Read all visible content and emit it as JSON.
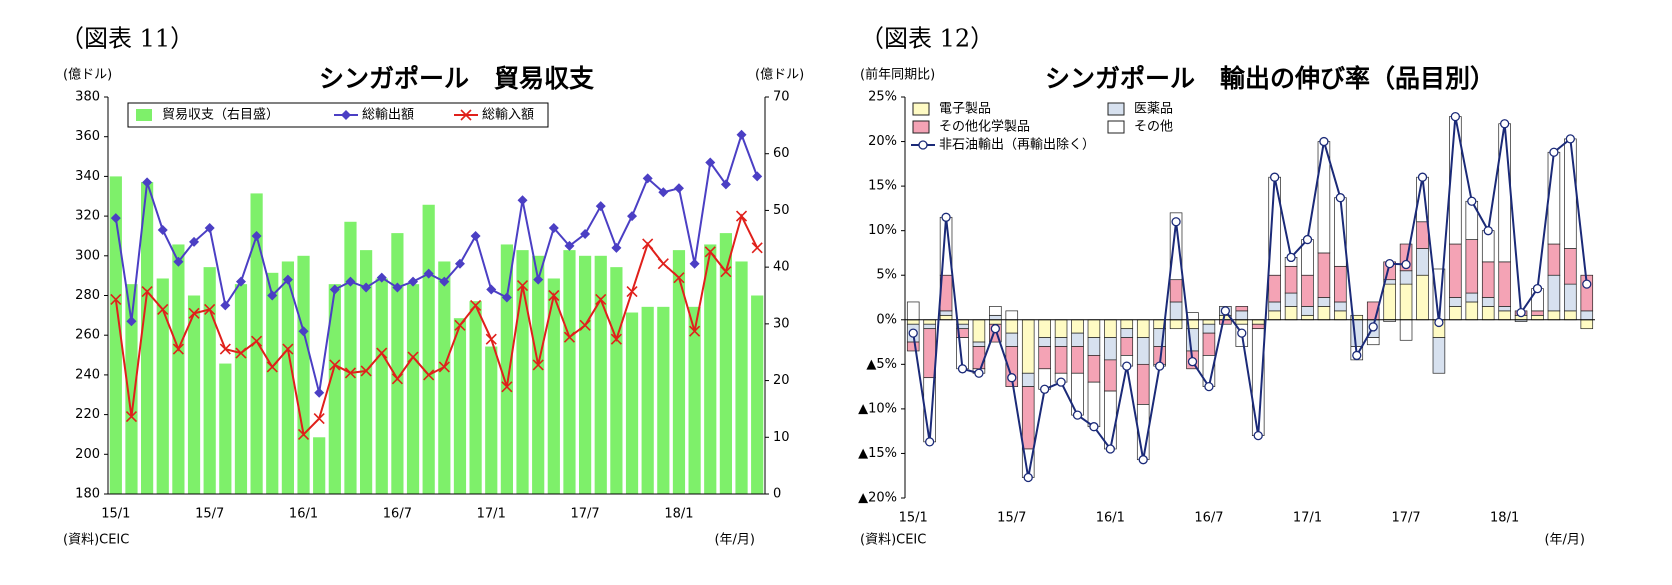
{
  "chart_data": [
    {
      "type": "combo",
      "figure_label": "（図表 11）",
      "title": "シンガポール　貿易収支",
      "y_label": "(億ドル)",
      "y2_label": "(億ドル)",
      "source": "(資料)CEIC",
      "x_label": "(年/月)",
      "categories": [
        "15/1",
        null,
        null,
        null,
        null,
        null,
        "15/7",
        null,
        null,
        null,
        null,
        null,
        "16/1",
        null,
        null,
        null,
        null,
        null,
        "16/7",
        null,
        null,
        null,
        null,
        null,
        "17/1",
        null,
        null,
        null,
        null,
        null,
        "17/7",
        null,
        null,
        null,
        null,
        null,
        "18/1",
        null,
        null,
        null,
        null,
        null
      ],
      "ylim": [
        180,
        380
      ],
      "yticks": [
        180,
        200,
        220,
        240,
        260,
        280,
        300,
        320,
        340,
        360,
        380
      ],
      "y2lim": [
        0,
        70
      ],
      "y2ticks": [
        0,
        10,
        20,
        30,
        40,
        50,
        60,
        70
      ],
      "series": [
        {
          "name": "貿易収支（右目盛）",
          "kind": "bar",
          "axis": "y2",
          "color": "#7ef06a",
          "values": [
            56,
            37,
            55,
            38,
            44,
            35,
            40,
            23,
            37,
            53,
            39,
            41,
            42,
            10,
            37,
            48,
            43,
            38,
            46,
            37,
            51,
            41,
            31,
            34,
            26,
            44,
            43,
            42,
            38,
            43,
            42,
            42,
            40,
            32,
            33,
            33,
            43,
            33,
            44,
            46,
            41,
            35
          ]
        },
        {
          "name": "総輸出額",
          "kind": "line",
          "marker": "diamond",
          "color": "#4b3fc4",
          "values": [
            319,
            267,
            337,
            313,
            297,
            307,
            314,
            275,
            287,
            310,
            280,
            288,
            262,
            231,
            283,
            287,
            284,
            289,
            284,
            287,
            291,
            287,
            296,
            310,
            283,
            279,
            328,
            288,
            314,
            305,
            311,
            325,
            304,
            320,
            339,
            332,
            334,
            296,
            347,
            336,
            361,
            340
          ]
        },
        {
          "name": "総輸入額",
          "kind": "line",
          "marker": "x",
          "color": "#e0201b",
          "values": [
            278,
            219,
            282,
            273,
            253,
            271,
            273,
            253,
            251,
            257,
            244,
            253,
            210,
            218,
            245,
            241,
            242,
            251,
            238,
            249,
            240,
            244,
            265,
            275,
            258,
            234,
            285,
            245,
            280,
            259,
            265,
            278,
            258,
            282,
            306,
            296,
            289,
            262,
            302,
            292,
            320,
            304
          ]
        }
      ]
    },
    {
      "type": "combo",
      "figure_label": "（図表 12）",
      "title": "シンガポール　輸出の伸び率（品目別）",
      "y_label": "(前年同期比)",
      "source": "(資料)CEIC",
      "x_label": "(年/月)",
      "stacked": true,
      "categories": [
        "15/1",
        null,
        null,
        null,
        null,
        null,
        "15/7",
        null,
        null,
        null,
        null,
        null,
        "16/1",
        null,
        null,
        null,
        null,
        null,
        "16/7",
        null,
        null,
        null,
        null,
        null,
        "17/1",
        null,
        null,
        null,
        null,
        null,
        "17/7",
        null,
        null,
        null,
        null,
        null,
        "18/1",
        null,
        null,
        null,
        null,
        null
      ],
      "ylim": [
        -20,
        25
      ],
      "yticks": [
        {
          "value": -20,
          "label": "▲20%"
        },
        {
          "value": -15,
          "label": "▲15%"
        },
        {
          "value": -10,
          "label": "▲10%"
        },
        {
          "value": -5,
          "label": "▲5%"
        },
        {
          "value": 0,
          "label": "0%"
        },
        {
          "value": 5,
          "label": "5%"
        },
        {
          "value": 10,
          "label": "10%"
        },
        {
          "value": 15,
          "label": "15%"
        },
        {
          "value": 20,
          "label": "20%"
        },
        {
          "value": 25,
          "label": "25%"
        }
      ],
      "series": [
        {
          "name": "電子製品",
          "kind": "bar",
          "color": "#fffbc4",
          "values": [
            -0.5,
            -0.5,
            0.5,
            -0.5,
            -2.5,
            -0.5,
            -1.5,
            -6,
            -2,
            -2,
            -1.5,
            -2,
            -2,
            -1,
            -2,
            -1,
            -1,
            -1,
            -0.5,
            0.5,
            -0.5,
            -0.5,
            1,
            1.5,
            0.5,
            1.5,
            1,
            0.5,
            0,
            4,
            4,
            5,
            -2,
            1.5,
            2,
            1.5,
            1,
            0.5,
            0.5,
            1,
            1,
            -1
          ]
        },
        {
          "name": "医薬品",
          "kind": "bar",
          "color": "#d7e1ef",
          "values": [
            -2,
            -0.5,
            0.5,
            -0.5,
            -0.5,
            0.5,
            -1.5,
            -1.5,
            -1,
            -1,
            -1.5,
            -2,
            -2.5,
            -1,
            -3,
            -2,
            2,
            -2.5,
            -1,
            1,
            1,
            0,
            1,
            1.5,
            1,
            1,
            1,
            -3,
            -2,
            0.5,
            1.5,
            3,
            -4,
            1,
            1,
            1,
            0.5,
            -0.2,
            0,
            4,
            3,
            1
          ]
        },
        {
          "name": "その他化学製品",
          "kind": "bar",
          "color": "#f4a3b5",
          "values": [
            -1,
            -5.5,
            4,
            -1,
            -2.5,
            -2,
            -4.5,
            -7,
            -2.5,
            -3,
            -3,
            -3,
            -3.5,
            -2,
            -4.5,
            -2,
            2.5,
            -2,
            -2.5,
            -0.5,
            0.5,
            -0.5,
            3,
            3,
            3.5,
            5,
            4,
            0,
            2,
            2,
            3,
            3,
            0,
            6,
            6,
            4,
            5,
            0.5,
            0.5,
            3.5,
            4,
            4
          ]
        },
        {
          "name": "その他",
          "kind": "bar",
          "color": "#ffffff",
          "values": [
            2,
            -7.2,
            6.5,
            -3.5,
            -0.5,
            1,
            1,
            -3.2,
            -2.3,
            -1,
            -4.7,
            -5,
            -6.5,
            -1.2,
            -6.2,
            -0.2,
            7.5,
            0.8,
            -3.5,
            0,
            -2.5,
            -12,
            11,
            1,
            4,
            12.5,
            7.7,
            -1.5,
            -0.8,
            -0.2,
            -2.3,
            5,
            5.7,
            14.3,
            4.3,
            3.5,
            15.5,
            0,
            2.5,
            10.3,
            12.3,
            0
          ]
        },
        {
          "name": "非石油輸出（再輸出除く）",
          "kind": "line",
          "marker": "circle",
          "color": "#1b2a78",
          "values": [
            -1.5,
            -13.7,
            11.5,
            -5.5,
            -6,
            -1,
            -6.5,
            -17.7,
            -7.8,
            -7,
            -10.7,
            -12,
            -14.5,
            -5.2,
            -15.7,
            -5.2,
            11,
            -4.7,
            -7.5,
            1,
            -1.5,
            -13,
            16,
            7,
            9,
            20,
            13.7,
            -4,
            -0.8,
            6.3,
            6.2,
            16,
            -0.3,
            22.8,
            13.3,
            10,
            22,
            0.8,
            3.5,
            18.8,
            20.3,
            4
          ]
        }
      ]
    }
  ]
}
